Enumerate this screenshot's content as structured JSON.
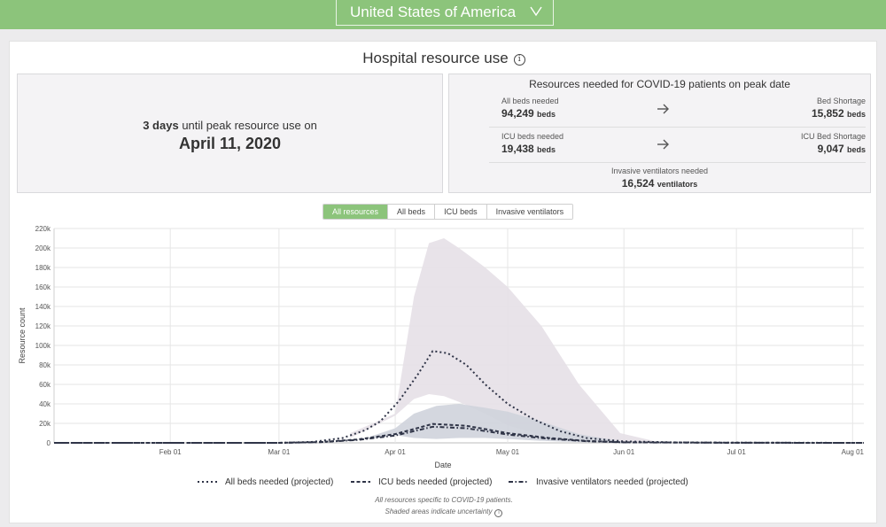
{
  "header": {
    "country": "United States of America"
  },
  "panel": {
    "title": "Hospital resource use"
  },
  "peak": {
    "days_count": "3 days",
    "days_text": "until peak resource use on",
    "date": "April 11, 2020"
  },
  "resources": {
    "title": "Resources needed for COVID-19 patients on peak date",
    "all_beds_label": "All beds needed",
    "all_beds_value": "94,249",
    "all_beds_unit": "beds",
    "bed_shortage_label": "Bed Shortage",
    "bed_shortage_value": "15,852",
    "bed_shortage_unit": "beds",
    "icu_beds_label": "ICU beds needed",
    "icu_beds_value": "19,438",
    "icu_beds_unit": "beds",
    "icu_shortage_label": "ICU Bed Shortage",
    "icu_shortage_value": "9,047",
    "icu_shortage_unit": "beds",
    "vent_label": "Invasive ventilators needed",
    "vent_value": "16,524",
    "vent_unit": "ventilators"
  },
  "tabs": [
    {
      "label": "All resources",
      "active": true
    },
    {
      "label": "All beds",
      "active": false
    },
    {
      "label": "ICU beds",
      "active": false
    },
    {
      "label": "Invasive ventilators",
      "active": false
    }
  ],
  "footnote": {
    "line1": "All resources specific to COVID-19 patients.",
    "line2": "Shaded areas indicate uncertainty"
  },
  "colors": {
    "accent": "#8cc47b",
    "line": "#2f3447",
    "band_all": "#e5e0e7",
    "band_icu": "#cfd3db"
  },
  "chart_data": {
    "type": "line",
    "xlabel": "Date",
    "ylabel": "Resource count",
    "x_ticks": [
      "Feb 01",
      "Mar 01",
      "Apr 01",
      "May 01",
      "Jun 01",
      "Jul 01",
      "Aug 01"
    ],
    "x_tick_dates": [
      "2020-02-01",
      "2020-03-01",
      "2020-04-01",
      "2020-05-01",
      "2020-06-01",
      "2020-07-01",
      "2020-08-01"
    ],
    "x_range": [
      "2020-01-01",
      "2020-08-04"
    ],
    "y_ticks": [
      "0",
      "20k",
      "40k",
      "60k",
      "80k",
      "100k",
      "120k",
      "140k",
      "160k",
      "180k",
      "200k",
      "220k"
    ],
    "ylim": [
      0,
      220000
    ],
    "grid": true,
    "legend_position": "bottom",
    "series": [
      {
        "name": "All beds needed (projected)",
        "style": "dotted",
        "x": [
          "2020-01-01",
          "2020-03-01",
          "2020-03-10",
          "2020-03-18",
          "2020-03-24",
          "2020-03-28",
          "2020-04-02",
          "2020-04-07",
          "2020-04-11",
          "2020-04-15",
          "2020-04-20",
          "2020-04-25",
          "2020-05-01",
          "2020-05-08",
          "2020-05-15",
          "2020-05-22",
          "2020-06-01",
          "2020-06-15",
          "2020-07-01",
          "2020-08-04"
        ],
        "y": [
          0,
          0,
          1000,
          5000,
          13000,
          22000,
          43000,
          70000,
          94249,
          92000,
          80000,
          60000,
          40000,
          24000,
          12000,
          5000,
          1500,
          500,
          200,
          0
        ]
      },
      {
        "name": "ICU beds needed (projected)",
        "style": "dashed",
        "x": [
          "2020-01-01",
          "2020-03-01",
          "2020-03-12",
          "2020-03-22",
          "2020-04-01",
          "2020-04-11",
          "2020-04-20",
          "2020-05-01",
          "2020-05-12",
          "2020-05-22",
          "2020-06-01",
          "2020-07-01",
          "2020-08-04"
        ],
        "y": [
          0,
          0,
          800,
          3500,
          9000,
          19438,
          17500,
          10000,
          5000,
          2000,
          600,
          100,
          0
        ]
      },
      {
        "name": "Invasive ventilators needed (projected)",
        "style": "dash-dot",
        "x": [
          "2020-01-01",
          "2020-03-01",
          "2020-03-12",
          "2020-03-22",
          "2020-04-01",
          "2020-04-11",
          "2020-04-20",
          "2020-05-01",
          "2020-05-12",
          "2020-05-22",
          "2020-06-01",
          "2020-07-01",
          "2020-08-04"
        ],
        "y": [
          0,
          0,
          700,
          3000,
          7500,
          16524,
          15000,
          8500,
          4200,
          1700,
          500,
          100,
          0
        ]
      }
    ],
    "uncertainty": [
      {
        "name": "all-beds-uncertainty",
        "x": [
          "2020-03-20",
          "2020-04-01",
          "2020-04-06",
          "2020-04-10",
          "2020-04-14",
          "2020-04-18",
          "2020-04-25",
          "2020-05-01",
          "2020-05-10",
          "2020-05-20",
          "2020-05-31",
          "2020-06-10"
        ],
        "upper": [
          10000,
          30000,
          150000,
          205000,
          210000,
          200000,
          180000,
          160000,
          120000,
          60000,
          10000,
          1000
        ],
        "lower": [
          5000,
          28000,
          45000,
          50000,
          48000,
          42000,
          30000,
          18000,
          8000,
          3000,
          500,
          0
        ]
      },
      {
        "name": "icu-uncertainty",
        "x": [
          "2020-03-25",
          "2020-04-01",
          "2020-04-06",
          "2020-04-12",
          "2020-04-18",
          "2020-04-25",
          "2020-05-01",
          "2020-05-10",
          "2020-05-20",
          "2020-06-01"
        ],
        "upper": [
          6000,
          15000,
          30000,
          38000,
          40000,
          36000,
          32000,
          22000,
          9000,
          1000
        ],
        "lower": [
          4000,
          8000,
          5000,
          4000,
          5000,
          5000,
          4000,
          2000,
          800,
          0
        ]
      }
    ]
  }
}
